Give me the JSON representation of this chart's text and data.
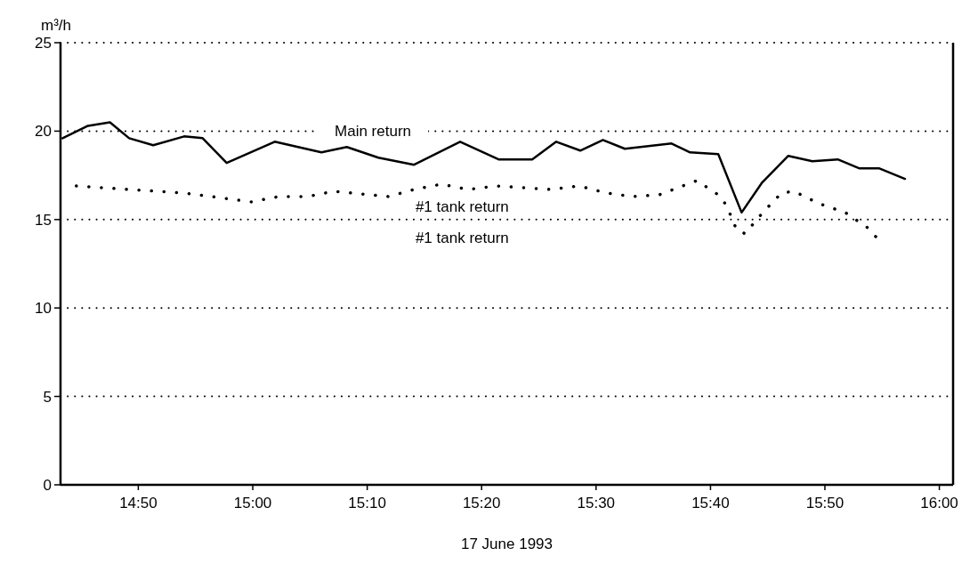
{
  "chart_data": {
    "type": "line",
    "ylabel": "m³/h",
    "xlabel": "17 June 1993",
    "xlim": [
      14.72,
      16.02
    ],
    "xticks": [
      {
        "value": 14.8333,
        "label": "14:50"
      },
      {
        "value": 15,
        "label": "15:00"
      },
      {
        "value": 15.1667,
        "label": "15:10"
      },
      {
        "value": 15.3333,
        "label": "15:20"
      },
      {
        "value": 15.5,
        "label": "15:30"
      },
      {
        "value": 15.6667,
        "label": "15:40"
      },
      {
        "value": 15.8333,
        "label": "15:50"
      },
      {
        "value": 16,
        "label": "16:00"
      }
    ],
    "ylim": [
      0,
      25
    ],
    "yticks": [
      0,
      5,
      10,
      15,
      20,
      25
    ],
    "grid": "y",
    "marker": "none",
    "series": [
      {
        "color": "#000000",
        "line_style": "solid",
        "x": [
          14.723,
          14.76,
          14.792,
          14.82,
          14.855,
          14.9,
          14.927,
          14.962,
          15.032,
          15.1,
          15.137,
          15.183,
          15.235,
          15.302,
          15.358,
          15.407,
          15.442,
          15.477,
          15.51,
          15.542,
          15.61,
          15.637,
          15.678,
          15.712,
          15.742,
          15.78,
          15.815,
          15.852,
          15.883,
          15.912,
          15.95
        ],
        "values": [
          19.6,
          20.3,
          20.5,
          19.6,
          19.2,
          19.7,
          19.6,
          18.2,
          19.4,
          18.8,
          19.1,
          18.5,
          18.1,
          19.4,
          18.4,
          18.4,
          19.4,
          18.9,
          19.5,
          19.0,
          19.3,
          18.8,
          18.7,
          15.4,
          17.1,
          18.6,
          18.3,
          18.4,
          17.9,
          17.9,
          17.3
        ]
      },
      {
        "color": "#000000",
        "line_style": "dotted",
        "x": [
          14.743,
          14.782,
          14.82,
          14.862,
          14.9,
          14.94,
          14.978,
          14.998,
          15.038,
          15.08,
          15.118,
          15.198,
          15.235,
          15.275,
          15.313,
          15.355,
          15.395,
          15.435,
          15.475,
          15.515,
          15.553,
          15.592,
          15.647,
          15.678,
          15.69,
          15.705,
          15.717,
          15.743,
          15.77,
          15.788,
          15.825,
          15.863,
          15.897,
          15.908
        ],
        "values": [
          16.9,
          16.8,
          16.7,
          16.6,
          16.5,
          16.3,
          16.1,
          16.0,
          16.3,
          16.3,
          16.6,
          16.3,
          16.7,
          17.0,
          16.7,
          16.9,
          16.8,
          16.7,
          16.9,
          16.5,
          16.3,
          16.4,
          17.2,
          16.4,
          15.8,
          14.4,
          14.2,
          15.4,
          16.5,
          16.6,
          15.9,
          15.4,
          14.5,
          14.0
        ]
      }
    ],
    "annotations": [
      "Main return",
      "#1 tank return",
      "#1 tank return"
    ]
  }
}
